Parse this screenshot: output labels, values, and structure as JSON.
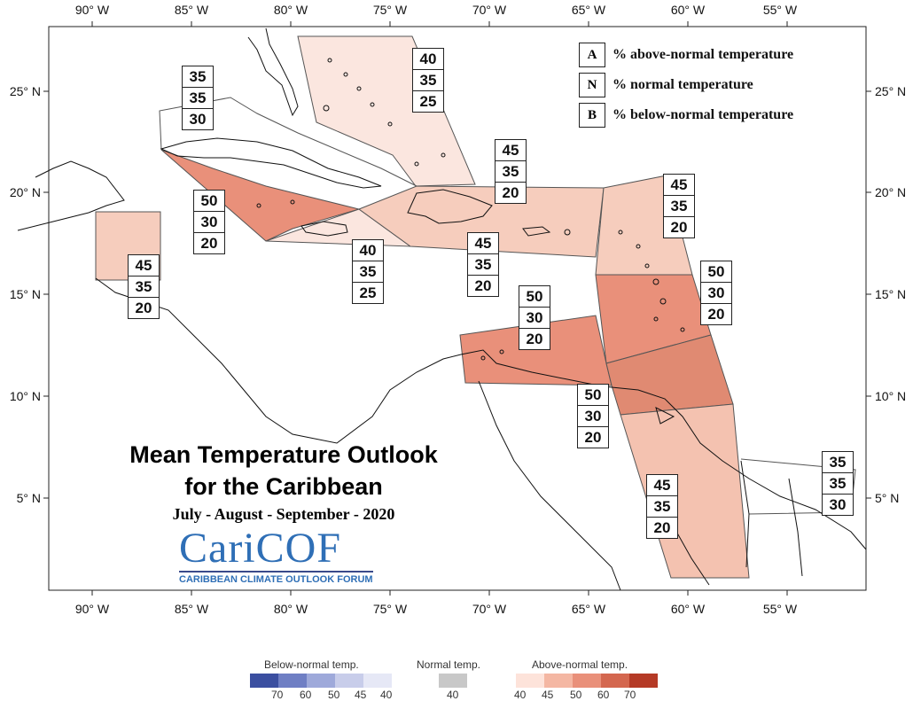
{
  "map": {
    "title_line1": "Mean Temperature Outlook",
    "title_line2": "for the Caribbean",
    "period": "July - August - September - 2020",
    "logo": {
      "name": "CariCOF",
      "subtitle": "CARIBBEAN CLIMATE OUTLOOK FORUM"
    },
    "x_ticks": [
      "90° W",
      "85° W",
      "80° W",
      "75° W",
      "70° W",
      "65° W",
      "60° W",
      "55° W"
    ],
    "y_ticks": [
      "25° N",
      "20° N",
      "15° N",
      "10° N",
      "5° N"
    ]
  },
  "legend": [
    {
      "key": "A",
      "text": "% above-normal temperature"
    },
    {
      "key": "N",
      "text": "% normal temperature"
    },
    {
      "key": "B",
      "text": "% below-normal temperature"
    }
  ],
  "boxes": [
    {
      "id": "bahamas",
      "values": [
        "40",
        "35",
        "25"
      ]
    },
    {
      "id": "cuba-west",
      "values": [
        "35",
        "35",
        "30"
      ]
    },
    {
      "id": "cayman",
      "values": [
        "50",
        "30",
        "20"
      ]
    },
    {
      "id": "jamaica",
      "values": [
        "40",
        "35",
        "25"
      ]
    },
    {
      "id": "hispaniola",
      "values": [
        "45",
        "35",
        "20"
      ]
    },
    {
      "id": "greater-antilles-east",
      "values": [
        "45",
        "35",
        "20"
      ]
    },
    {
      "id": "leeward",
      "values": [
        "45",
        "35",
        "20"
      ]
    },
    {
      "id": "windward",
      "values": [
        "50",
        "30",
        "20"
      ]
    },
    {
      "id": "abc-islands",
      "values": [
        "50",
        "30",
        "20"
      ]
    },
    {
      "id": "trinidad",
      "values": [
        "50",
        "30",
        "20"
      ]
    },
    {
      "id": "belize",
      "values": [
        "45",
        "35",
        "20"
      ]
    },
    {
      "id": "guyana",
      "values": [
        "45",
        "35",
        "20"
      ]
    },
    {
      "id": "suriname",
      "values": [
        "35",
        "35",
        "30"
      ]
    }
  ],
  "colorbar": {
    "below_title": "Below-normal temp.",
    "normal_title": "Normal temp.",
    "above_title": "Above-normal temp.",
    "below_ticks": [
      "70",
      "60",
      "50",
      "45",
      "40"
    ],
    "normal_ticks": [
      "40"
    ],
    "above_ticks": [
      "40",
      "45",
      "50",
      "60",
      "70"
    ],
    "below_colors": [
      "#3b4fa0",
      "#6f7fc4",
      "#9ea9da",
      "#c8cdea",
      "#e6e8f6"
    ],
    "normal_color": "#c8c8c8",
    "above_colors": [
      "#fde3da",
      "#f4b7a3",
      "#e9907a",
      "#d4674f",
      "#b53a26"
    ]
  }
}
